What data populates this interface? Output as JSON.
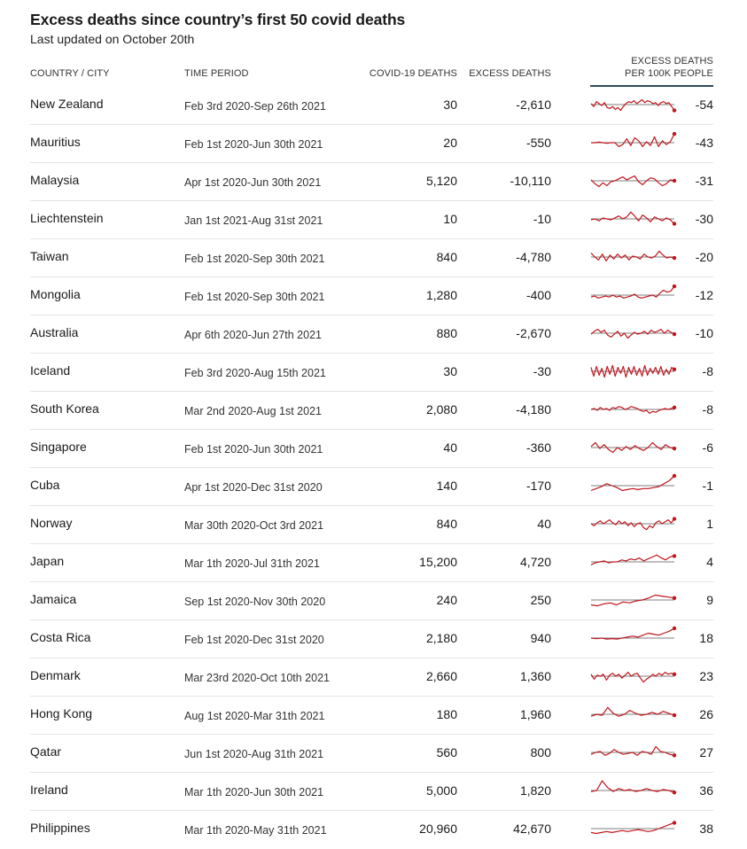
{
  "header": {
    "title": "Excess deaths since country’s first 50 covid deaths",
    "subtitle": "Last updated on October 20th"
  },
  "columns": {
    "country": "COUNTRY / CITY",
    "period": "TIME PERIOD",
    "covid": "COVID-19 DEATHS",
    "excess": "EXCESS DEATHS",
    "per100k_line1": "EXCESS DEATHS",
    "per100k_line2": "PER 100K PEOPLE"
  },
  "colors": {
    "line": "#c0161d",
    "baseline": "#555555",
    "separator": "#e4e4e4",
    "header_rule": "#33495b"
  },
  "chart_data": {
    "type": "table",
    "rows": [
      {
        "country": "New Zealand",
        "period": "Feb 3rd 2020-Sep 26th 2021",
        "covid": "30",
        "excess": "-2,610",
        "per100k": "-54",
        "trend": [
          0.1,
          -0.2,
          0.3,
          0.1,
          -0.1,
          0.2,
          -0.3,
          -0.4,
          -0.2,
          -0.5,
          -0.3,
          -0.6,
          -0.2,
          0.1,
          0.3,
          0.2,
          0.4,
          0.1,
          0.3,
          0.5,
          0.2,
          0.4,
          0.3,
          0.1,
          0.2,
          -0.1,
          0.2,
          0.3,
          0.1,
          0.2,
          -0.2,
          -0.6
        ]
      },
      {
        "country": "Mauritius",
        "period": "Feb 1st 2020-Jun 30th 2021",
        "covid": "20",
        "excess": "-550",
        "per100k": "-43",
        "trend": [
          0.0,
          0.0,
          0.05,
          0.0,
          -0.05,
          0.0,
          0.0,
          -0.4,
          -0.2,
          0.4,
          -0.3,
          0.5,
          0.2,
          -0.4,
          0.1,
          -0.3,
          0.6,
          -0.4,
          0.2,
          -0.2,
          0.1,
          0.9
        ]
      },
      {
        "country": "Malaysia",
        "period": "Apr 1st 2020-Jun 30th 2021",
        "covid": "5,120",
        "excess": "-10,110",
        "per100k": "-31",
        "trend": [
          0.1,
          -0.3,
          -0.6,
          -0.2,
          -0.5,
          -0.1,
          0.0,
          0.2,
          0.4,
          0.1,
          0.3,
          0.5,
          -0.1,
          -0.4,
          0.0,
          0.3,
          0.2,
          -0.2,
          -0.5,
          -0.3,
          0.1,
          0.0
        ]
      },
      {
        "country": "Liechtenstein",
        "period": "Jan 1st 2021-Aug 31st 2021",
        "covid": "10",
        "excess": "-10",
        "per100k": "-30",
        "trend": [
          -0.1,
          0.0,
          -0.2,
          0.1,
          0.0,
          -0.1,
          0.1,
          0.3,
          0.0,
          0.2,
          0.7,
          0.3,
          -0.2,
          0.4,
          0.1,
          -0.3,
          0.2,
          0.0,
          -0.2,
          0.1,
          -0.1,
          -0.5
        ]
      },
      {
        "country": "Taiwan",
        "period": "Feb 1st 2020-Sep 30th 2021",
        "covid": "840",
        "excess": "-4,780",
        "per100k": "-20",
        "trend": [
          0.4,
          0.0,
          -0.3,
          0.3,
          -0.4,
          0.2,
          -0.2,
          0.3,
          -0.1,
          0.2,
          -0.3,
          0.1,
          0.0,
          -0.2,
          0.3,
          0.0,
          -0.1,
          0.1,
          0.6,
          0.2,
          -0.1,
          0.0,
          -0.1
        ]
      },
      {
        "country": "Mongolia",
        "period": "Feb 1st 2020-Sep 30th 2021",
        "covid": "1,280",
        "excess": "-400",
        "per100k": "-12",
        "trend": [
          -0.2,
          -0.1,
          -0.3,
          -0.2,
          -0.1,
          -0.2,
          0.0,
          -0.2,
          -0.1,
          -0.3,
          -0.2,
          -0.1,
          0.1,
          -0.2,
          -0.3,
          -0.2,
          -0.1,
          0.0,
          -0.2,
          0.2,
          0.5,
          0.3,
          0.4,
          0.9
        ]
      },
      {
        "country": "Australia",
        "period": "Apr 6th 2020-Jun 27th 2021",
        "covid": "880",
        "excess": "-2,670",
        "per100k": "-10",
        "trend": [
          -0.1,
          0.2,
          0.4,
          0.1,
          0.3,
          -0.2,
          -0.4,
          -0.1,
          0.2,
          -0.3,
          0.0,
          -0.5,
          -0.2,
          0.1,
          -0.1,
          0.0,
          0.2,
          -0.1,
          0.3,
          0.1,
          0.2,
          0.4,
          0.0,
          0.3,
          0.1,
          -0.1
        ]
      },
      {
        "country": "Iceland",
        "period": "Feb 3rd 2020-Aug 15th 2021",
        "covid": "30",
        "excess": "-30",
        "per100k": "-8",
        "trend": [
          0.4,
          -0.5,
          0.5,
          -0.4,
          0.3,
          -0.6,
          0.5,
          -0.3,
          0.6,
          -0.5,
          0.4,
          -0.2,
          0.5,
          -0.6,
          0.4,
          -0.3,
          0.5,
          -0.4,
          0.3,
          -0.5,
          0.6,
          -0.4,
          0.3,
          -0.2,
          0.4,
          -0.3,
          0.5,
          -0.4,
          0.2,
          -0.3,
          0.4,
          0.2
        ]
      },
      {
        "country": "South Korea",
        "period": "Mar 2nd 2020-Aug 1st 2021",
        "covid": "2,080",
        "excess": "-4,180",
        "per100k": "-8",
        "trend": [
          0.0,
          0.1,
          -0.1,
          0.2,
          0.0,
          0.1,
          -0.1,
          0.2,
          0.1,
          0.3,
          0.2,
          0.0,
          0.1,
          0.3,
          0.2,
          0.1,
          -0.1,
          -0.2,
          -0.1,
          -0.4,
          -0.2,
          -0.3,
          -0.1,
          0.0,
          0.1,
          0.0,
          0.1,
          0.2
        ]
      },
      {
        "country": "Singapore",
        "period": "Feb 1st 2020-Jun 30th 2021",
        "covid": "40",
        "excess": "-360",
        "per100k": "-6",
        "trend": [
          0.1,
          0.5,
          -0.1,
          0.3,
          -0.2,
          -0.5,
          0.0,
          -0.3,
          0.1,
          -0.2,
          0.2,
          -0.1,
          -0.3,
          0.0,
          0.5,
          0.1,
          -0.2,
          0.3,
          0.0,
          -0.1
        ]
      },
      {
        "country": "Cuba",
        "period": "Apr 1st 2020-Dec 31st 2020",
        "covid": "140",
        "excess": "-170",
        "per100k": "-1",
        "trend": [
          -0.5,
          -0.3,
          -0.1,
          0.2,
          0.0,
          -0.2,
          -0.5,
          -0.4,
          -0.3,
          -0.4,
          -0.3,
          -0.3,
          -0.2,
          -0.1,
          0.2,
          0.5,
          1.0
        ]
      },
      {
        "country": "Norway",
        "period": "Mar 30th 2020-Oct 3rd 2021",
        "covid": "840",
        "excess": "40",
        "per100k": "1",
        "trend": [
          0.0,
          -0.2,
          0.1,
          0.3,
          0.0,
          0.2,
          0.4,
          0.1,
          -0.1,
          0.3,
          0.0,
          0.2,
          -0.2,
          0.1,
          -0.3,
          0.0,
          0.1,
          -0.4,
          -0.6,
          -0.2,
          -0.4,
          0.1,
          0.3,
          0.0,
          0.2,
          0.4,
          0.1,
          0.5
        ]
      },
      {
        "country": "Japan",
        "period": "Mar 1th 2020-Jul 31th 2021",
        "covid": "15,200",
        "excess": "4,720",
        "per100k": "4",
        "trend": [
          -0.3,
          -0.1,
          0.0,
          0.1,
          -0.1,
          0.0,
          0.0,
          0.2,
          0.1,
          0.3,
          0.2,
          0.4,
          0.1,
          0.3,
          0.5,
          0.7,
          0.4,
          0.2,
          0.5,
          0.6
        ]
      },
      {
        "country": "Jamaica",
        "period": "Sep 1st 2020-Nov 30th 2020",
        "covid": "240",
        "excess": "250",
        "per100k": "9",
        "trend": [
          -0.5,
          -0.6,
          -0.4,
          -0.3,
          -0.5,
          -0.2,
          -0.3,
          -0.1,
          0.0,
          0.2,
          0.5,
          0.4,
          0.3,
          0.2
        ]
      },
      {
        "country": "Costa Rica",
        "period": "Feb 1st 2020-Dec 31st 2020",
        "covid": "2,180",
        "excess": "940",
        "per100k": "18",
        "trend": [
          0.0,
          -0.05,
          0.0,
          -0.1,
          -0.05,
          -0.1,
          0.0,
          0.1,
          0.2,
          0.1,
          0.3,
          0.5,
          0.4,
          0.3,
          0.5,
          0.7,
          1.0
        ]
      },
      {
        "country": "Denmark",
        "period": "Mar 23rd 2020-Oct 10th 2021",
        "covid": "2,660",
        "excess": "1,360",
        "per100k": "23",
        "trend": [
          0.2,
          -0.3,
          0.1,
          0.0,
          0.2,
          -0.4,
          0.1,
          0.3,
          0.0,
          0.2,
          -0.2,
          0.1,
          0.4,
          0.0,
          0.2,
          0.3,
          -0.2,
          -0.6,
          -0.3,
          -0.1,
          0.2,
          0.0,
          0.3,
          0.1,
          0.4,
          0.2,
          0.3,
          0.2
        ]
      },
      {
        "country": "Hong Kong",
        "period": "Aug 1st 2020-Mar 31th 2021",
        "covid": "180",
        "excess": "1,960",
        "per100k": "26",
        "trend": [
          -0.2,
          0.0,
          -0.1,
          0.7,
          0.1,
          -0.2,
          0.0,
          0.4,
          0.1,
          -0.1,
          0.0,
          0.2,
          0.0,
          0.3,
          0.1,
          -0.1
        ]
      },
      {
        "country": "Qatar",
        "period": "Jun 1st 2020-Aug 31th 2021",
        "covid": "560",
        "excess": "800",
        "per100k": "27",
        "trend": [
          -0.2,
          0.0,
          0.1,
          -0.3,
          -0.1,
          0.3,
          0.0,
          -0.2,
          -0.1,
          0.0,
          -0.3,
          0.1,
          0.0,
          -0.2,
          0.6,
          0.1,
          0.0,
          -0.2,
          -0.3
        ]
      },
      {
        "country": "Ireland",
        "period": "Mar 1th 2020-Jun 30th 2021",
        "covid": "5,000",
        "excess": "1,820",
        "per100k": "36",
        "trend": [
          -0.1,
          0.0,
          1.0,
          0.3,
          -0.1,
          0.2,
          0.0,
          0.1,
          -0.1,
          0.0,
          0.2,
          0.0,
          -0.1,
          0.1,
          0.0,
          -0.2
        ]
      },
      {
        "country": "Philippines",
        "period": "Mar 1th 2020-May 31th 2021",
        "covid": "20,960",
        "excess": "42,670",
        "per100k": "38",
        "trend": [
          -0.4,
          -0.5,
          -0.4,
          -0.3,
          -0.4,
          -0.3,
          -0.2,
          -0.3,
          -0.2,
          -0.1,
          -0.2,
          -0.3,
          -0.2,
          0.0,
          0.2,
          0.4,
          0.6
        ]
      }
    ]
  }
}
